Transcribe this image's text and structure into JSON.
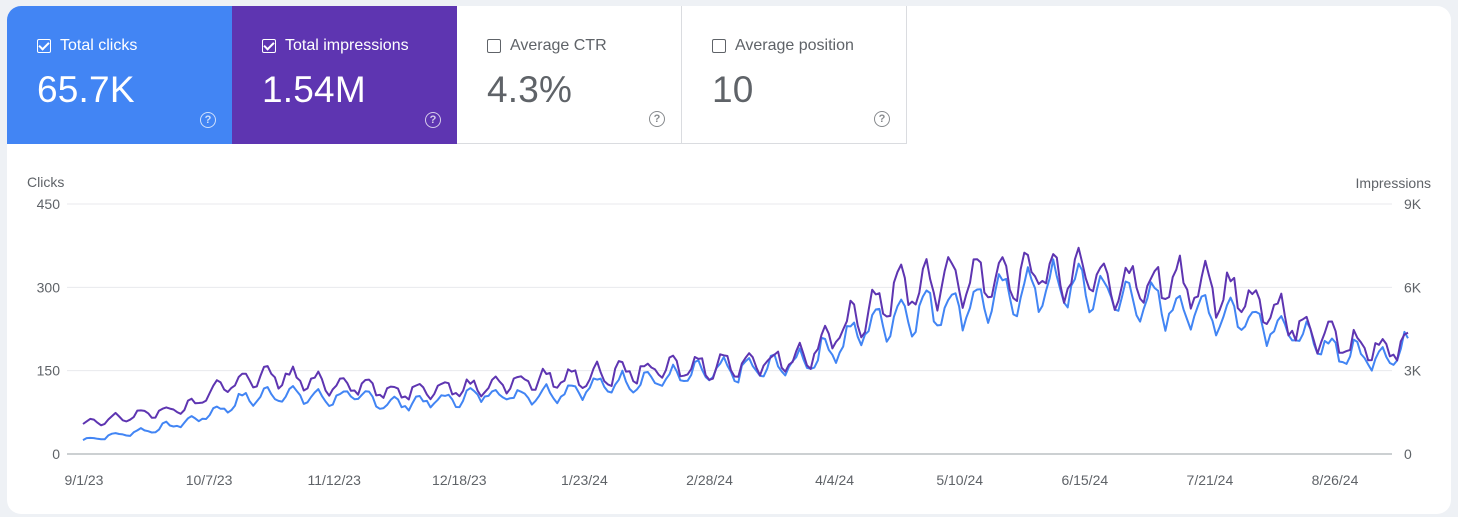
{
  "metrics": [
    {
      "label": "Total clicks",
      "value": "65.7K",
      "selected": true,
      "color": "#4285f4"
    },
    {
      "label": "Total impressions",
      "value": "1.54M",
      "selected": true,
      "color": "#5e35b1"
    },
    {
      "label": "Average CTR",
      "value": "4.3%",
      "selected": false,
      "color": "#ffffff"
    },
    {
      "label": "Average position",
      "value": "10",
      "selected": false,
      "color": "#ffffff"
    }
  ],
  "help_icon": "question-circle-icon",
  "chart_data": {
    "type": "line",
    "left_axis": {
      "label": "Clicks",
      "ticks": [
        "0",
        "150",
        "300",
        "450"
      ],
      "range": [
        0,
        450
      ]
    },
    "right_axis": {
      "label": "Impressions",
      "ticks": [
        "0",
        "3K",
        "6K",
        "9K"
      ],
      "range": [
        0,
        9000
      ]
    },
    "x_ticks": [
      "9/1/23",
      "10/7/23",
      "11/12/23",
      "12/18/23",
      "1/23/24",
      "2/28/24",
      "4/4/24",
      "5/10/24",
      "6/15/24",
      "7/21/24",
      "8/26/24"
    ],
    "x_range_days": [
      0,
      366
    ],
    "grid": true,
    "series": [
      {
        "name": "Total clicks",
        "axis": "left",
        "color": "#4285f4",
        "points": [
          [
            0,
            25
          ],
          [
            10,
            35
          ],
          [
            20,
            45
          ],
          [
            30,
            60
          ],
          [
            36,
            75
          ],
          [
            45,
            100
          ],
          [
            55,
            110
          ],
          [
            66,
            100
          ],
          [
            75,
            105
          ],
          [
            85,
            90
          ],
          [
            95,
            95
          ],
          [
            105,
            100
          ],
          [
            110,
            110
          ],
          [
            120,
            105
          ],
          [
            130,
            110
          ],
          [
            140,
            120
          ],
          [
            150,
            130
          ],
          [
            160,
            135
          ],
          [
            170,
            145
          ],
          [
            180,
            150
          ],
          [
            190,
            155
          ],
          [
            200,
            170
          ],
          [
            210,
            200
          ],
          [
            215,
            225
          ],
          [
            225,
            250
          ],
          [
            235,
            265
          ],
          [
            245,
            270
          ],
          [
            255,
            285
          ],
          [
            265,
            300
          ],
          [
            275,
            300
          ],
          [
            285,
            285
          ],
          [
            295,
            270
          ],
          [
            300,
            265
          ],
          [
            310,
            255
          ],
          [
            320,
            250
          ],
          [
            330,
            230
          ],
          [
            340,
            200
          ],
          [
            350,
            180
          ],
          [
            360,
            175
          ],
          [
            366,
            195
          ]
        ]
      },
      {
        "name": "Total impressions",
        "axis": "right",
        "color": "#5e35b1",
        "points": [
          [
            0,
            1050
          ],
          [
            10,
            1300
          ],
          [
            20,
            1500
          ],
          [
            30,
            1700
          ],
          [
            36,
            2350
          ],
          [
            45,
            2700
          ],
          [
            55,
            2800
          ],
          [
            66,
            2500
          ],
          [
            75,
            2550
          ],
          [
            85,
            2200
          ],
          [
            95,
            2400
          ],
          [
            105,
            2350
          ],
          [
            110,
            2450
          ],
          [
            120,
            2600
          ],
          [
            130,
            2700
          ],
          [
            140,
            2800
          ],
          [
            150,
            2950
          ],
          [
            160,
            3050
          ],
          [
            170,
            3150
          ],
          [
            180,
            3250
          ],
          [
            190,
            3350
          ],
          [
            200,
            3550
          ],
          [
            210,
            4500
          ],
          [
            215,
            5100
          ],
          [
            225,
            5900
          ],
          [
            235,
            6200
          ],
          [
            245,
            6350
          ],
          [
            255,
            6400
          ],
          [
            265,
            6500
          ],
          [
            275,
            6350
          ],
          [
            285,
            6200
          ],
          [
            295,
            6100
          ],
          [
            300,
            6150
          ],
          [
            310,
            6000
          ],
          [
            320,
            5800
          ],
          [
            330,
            5000
          ],
          [
            340,
            4300
          ],
          [
            350,
            3900
          ],
          [
            360,
            3750
          ],
          [
            366,
            4100
          ]
        ]
      }
    ]
  }
}
